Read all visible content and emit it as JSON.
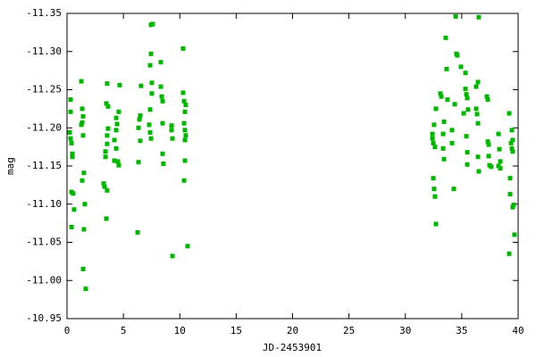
{
  "chart_data": {
    "type": "scatter",
    "xlabel": "JD-2453901",
    "ylabel": "mag",
    "xlim": [
      0,
      40
    ],
    "xticks": [
      0,
      5,
      10,
      15,
      20,
      25,
      30,
      35,
      40
    ],
    "ylim": [
      -10.95,
      -11.35
    ],
    "yticks": [
      -10.95,
      {
        "value": -11.0,
        "label": "-11.00"
      },
      -11.05,
      {
        "value": -11.1,
        "label": "-11.10"
      },
      -11.15,
      {
        "value": -11.2,
        "label": "-11.20"
      },
      -11.25,
      {
        "value": -11.3,
        "label": "-11.30"
      },
      -11.35
    ],
    "series": [
      {
        "color": "#00b400",
        "x": [
          0.24,
          0.32,
          0.32,
          0.32,
          0.4,
          0.48,
          0.48,
          0.4,
          0.55,
          0.63,
          0.4,
          1.27,
          1.35,
          1.43,
          1.35,
          1.27,
          1.43,
          1.5,
          1.35,
          1.58,
          1.5,
          1.43,
          1.66,
          3.25,
          3.33,
          3.56,
          3.41,
          3.41,
          3.56,
          3.56,
          3.64,
          3.49,
          3.64,
          3.56,
          3.49,
          4.36,
          4.44,
          4.36,
          4.2,
          4.36,
          4.51,
          4.59,
          4.2,
          4.67,
          4.59,
          6.26,
          6.34,
          6.34,
          6.42,
          6.5,
          6.57,
          6.5,
          7.45,
          7.6,
          7.45,
          7.37,
          7.52,
          7.52,
          7.37,
          7.29,
          7.37,
          7.45,
          8.32,
          8.32,
          8.4,
          8.48,
          8.48,
          8.48,
          8.55,
          9.27,
          9.27,
          9.35,
          9.35,
          10.3,
          10.3,
          10.38,
          10.46,
          10.53,
          10.38,
          10.46,
          10.53,
          10.46,
          10.46,
          10.38,
          10.69,
          32.4,
          32.4,
          32.48,
          32.55,
          32.63,
          32.48,
          32.55,
          32.63,
          32.71,
          32.71,
          33.11,
          33.19,
          33.35,
          33.35,
          33.43,
          33.43,
          33.58,
          33.66,
          33.74,
          34.14,
          34.14,
          34.3,
          34.38,
          34.46,
          34.53,
          34.61,
          34.93,
          35.17,
          35.33,
          35.41,
          35.49,
          35.56,
          35.41,
          35.49,
          35.49,
          35.33,
          36.28,
          36.44,
          36.28,
          36.36,
          36.44,
          36.51,
          36.44,
          36.51,
          37.23,
          37.31,
          37.31,
          37.39,
          37.39,
          37.47,
          37.62,
          38.26,
          38.34,
          38.42,
          38.42,
          38.26,
          39.21,
          39.29,
          39.29,
          39.21,
          39.45,
          39.37,
          39.45,
          39.52,
          39.52,
          39.52,
          39.6,
          39.68
        ],
        "values": [
          -11.194,
          -11.237,
          -11.221,
          -11.186,
          -11.18,
          -11.166,
          -11.162,
          -11.116,
          -11.114,
          -11.093,
          -11.07,
          -11.261,
          -11.225,
          -11.215,
          -11.207,
          -11.204,
          -11.19,
          -11.141,
          -11.131,
          -11.1,
          -11.067,
          -11.015,
          -10.989,
          -11.127,
          -11.123,
          -11.118,
          -11.162,
          -11.169,
          -11.179,
          -11.19,
          -11.199,
          -11.232,
          -11.228,
          -11.258,
          -11.081,
          -11.213,
          -11.205,
          -11.197,
          -11.184,
          -11.173,
          -11.156,
          -11.151,
          -11.157,
          -11.256,
          -11.221,
          -11.063,
          -11.155,
          -11.2,
          -11.211,
          -11.216,
          -11.255,
          -11.183,
          -11.335,
          -11.336,
          -11.297,
          -11.282,
          -11.259,
          -11.245,
          -11.224,
          -11.204,
          -11.194,
          -11.186,
          -11.286,
          -11.254,
          -11.241,
          -11.235,
          -11.206,
          -11.166,
          -11.153,
          -11.203,
          -11.197,
          -11.186,
          -11.032,
          -11.304,
          -11.246,
          -11.235,
          -11.221,
          -11.23,
          -11.206,
          -11.197,
          -11.19,
          -11.184,
          -11.157,
          -11.131,
          -11.045,
          -11.192,
          -11.186,
          -11.18,
          -11.204,
          -11.175,
          -11.134,
          -11.12,
          -11.11,
          -11.074,
          -11.225,
          -11.245,
          -11.241,
          -11.192,
          -11.173,
          -11.159,
          -11.208,
          -11.318,
          -11.277,
          -11.237,
          -11.197,
          -11.18,
          -11.12,
          -11.231,
          -11.346,
          -11.297,
          -11.295,
          -11.28,
          -11.219,
          -11.251,
          -11.244,
          -11.239,
          -11.224,
          -11.189,
          -11.168,
          -11.152,
          -11.272,
          -11.254,
          -11.26,
          -11.225,
          -11.218,
          -11.206,
          -11.345,
          -11.162,
          -11.143,
          -11.241,
          -11.237,
          -11.182,
          -11.178,
          -11.163,
          -11.151,
          -11.149,
          -11.192,
          -11.172,
          -11.156,
          -11.147,
          -11.15,
          -11.219,
          -11.134,
          -11.113,
          -11.035,
          -11.197,
          -11.18,
          -11.173,
          -11.184,
          -11.169,
          -11.096,
          -11.099,
          -11.06
        ]
      }
    ]
  }
}
